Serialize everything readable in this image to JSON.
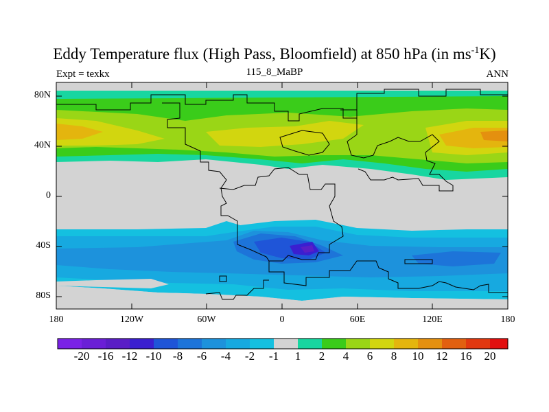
{
  "title": {
    "main": "Eddy Temperature flux (High Pass, Bloomfield) at 850 hPa (in ms",
    "sup": "-1",
    "tail": "K)"
  },
  "subtitle": {
    "left": "Expt = texkx",
    "center": "115_8_MaBP",
    "right": "ANN"
  },
  "axes": {
    "lat_labels": [
      "80N",
      "40N",
      "0",
      "40S",
      "80S"
    ],
    "lon_labels": [
      "180",
      "120W",
      "60W",
      "0",
      "60E",
      "120E",
      "180"
    ]
  },
  "colorbar": {
    "labels": [
      "-20",
      "-16",
      "-12",
      "-10",
      "-8",
      "-6",
      "-4",
      "-2",
      "-1",
      "1",
      "2",
      "4",
      "6",
      "8",
      "10",
      "12",
      "16",
      "20"
    ],
    "colors": [
      "#7a22e6",
      "#6a1fd6",
      "#5a1ec6",
      "#3a1fd0",
      "#1f55d8",
      "#1d74d9",
      "#1d92dc",
      "#17a9e0",
      "#14c0e0",
      "#d3d3d3",
      "#18d6a0",
      "#3acc1a",
      "#9ad616",
      "#d2d60f",
      "#e4b50e",
      "#e4900f",
      "#e2600f",
      "#e2380f",
      "#e20f0f"
    ]
  },
  "colors": {
    "land_mask": "#d3d3d3",
    "outline": "#000000"
  }
}
